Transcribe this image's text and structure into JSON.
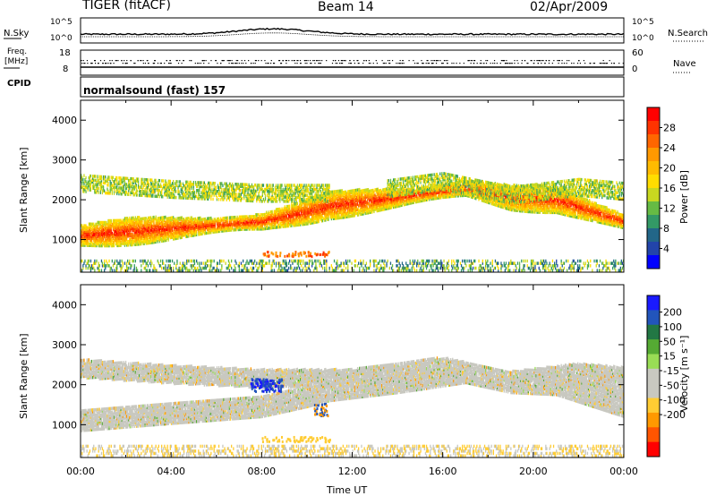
{
  "header": {
    "radar": "TIGER (fitACF)",
    "beam": "Beam 14",
    "date": "02/Apr/2009"
  },
  "top_panels": {
    "nsky_label": "N.Sky",
    "nsky_ticks": [
      "10^5",
      "10^0"
    ],
    "nsearch_label": "N.Search",
    "nsearch_ticks": [
      "10^5",
      "10^0"
    ],
    "freq_label_1": "Freq.",
    "freq_label_2": "[MHz]",
    "freq_ticks": [
      "18",
      "8"
    ],
    "nave_label": "Nave",
    "nave_ticks": [
      "60",
      "0"
    ],
    "cpid_label": "CPID",
    "cpid_text": "normalsound (fast) 157"
  },
  "axes": {
    "ylabel": "Slant Range [km]",
    "xlabel": "Time UT",
    "y_ticks": [
      "4000",
      "3000",
      "2000",
      "1000"
    ],
    "x_ticks": [
      "00:00",
      "04:00",
      "08:00",
      "12:00",
      "16:00",
      "20:00",
      "00:00"
    ]
  },
  "power_scale": {
    "label": "Power [dB]",
    "ticks": [
      "28",
      "24",
      "20",
      "16",
      "12",
      "8",
      "4"
    ],
    "colors": [
      "#ff0000",
      "#ff3300",
      "#ff6600",
      "#ff9900",
      "#ffbb00",
      "#ffdd00",
      "#c8d820",
      "#66bb44",
      "#339966",
      "#226688",
      "#2244aa",
      "#0000ff"
    ]
  },
  "velocity_scale": {
    "label": "Velocity [m s⁻¹]",
    "ticks": [
      "200",
      "100",
      "50",
      "15",
      "-15",
      "-50",
      "-100",
      "-200"
    ],
    "colors": [
      "#1a1aff",
      "#2255bb",
      "#227744",
      "#55aa33",
      "#99dd55",
      "#c8c8c0",
      "#c8c8c0",
      "#ffcc33",
      "#ff9900",
      "#ff5500",
      "#ff0000"
    ]
  },
  "chart_data": [
    {
      "type": "heatmap",
      "title": "Power",
      "xlabel": "Time UT",
      "ylabel": "Slant Range [km]",
      "xlim": [
        "00:00",
        "24:00"
      ],
      "ylim": [
        180,
        4500
      ],
      "colorbar": {
        "label": "Power [dB]",
        "range": [
          0,
          32
        ]
      },
      "features": [
        {
          "name": "main band",
          "time_start": 0,
          "time_end": 24,
          "range_km": [
            [
              0,
              1100
            ],
            [
              4,
              1280
            ],
            [
              8,
              1450
            ],
            [
              10,
              1700
            ],
            [
              11,
              1850
            ],
            [
              14,
              2050
            ],
            [
              17,
              2300
            ],
            [
              19,
              2050
            ],
            [
              21,
              2000
            ],
            [
              24,
              1450
            ]
          ],
          "power_db": 26
        },
        {
          "name": "upper band",
          "time_start": 0,
          "time_end": 24,
          "range_km": [
            [
              0,
              2400
            ],
            [
              4,
              2250
            ],
            [
              8,
              2150
            ],
            [
              12,
              2150
            ],
            [
              16,
              2450
            ],
            [
              19,
              2100
            ],
            [
              22,
              2300
            ],
            [
              24,
              2200
            ]
          ],
          "power_db": 16
        }
      ]
    },
    {
      "type": "heatmap",
      "title": "Velocity",
      "xlabel": "Time UT",
      "ylabel": "Slant Range [km]",
      "xlim": [
        "00:00",
        "24:00"
      ],
      "ylim": [
        180,
        4500
      ],
      "colorbar": {
        "label": "Velocity [m s⁻¹]",
        "range": [
          -200,
          200
        ]
      },
      "features": [
        {
          "name": "ground scatter (low velocity)",
          "velocity": 0
        },
        {
          "name": "positive velocity patch",
          "time": 8,
          "range_km": 2000,
          "velocity": 200
        }
      ]
    }
  ]
}
